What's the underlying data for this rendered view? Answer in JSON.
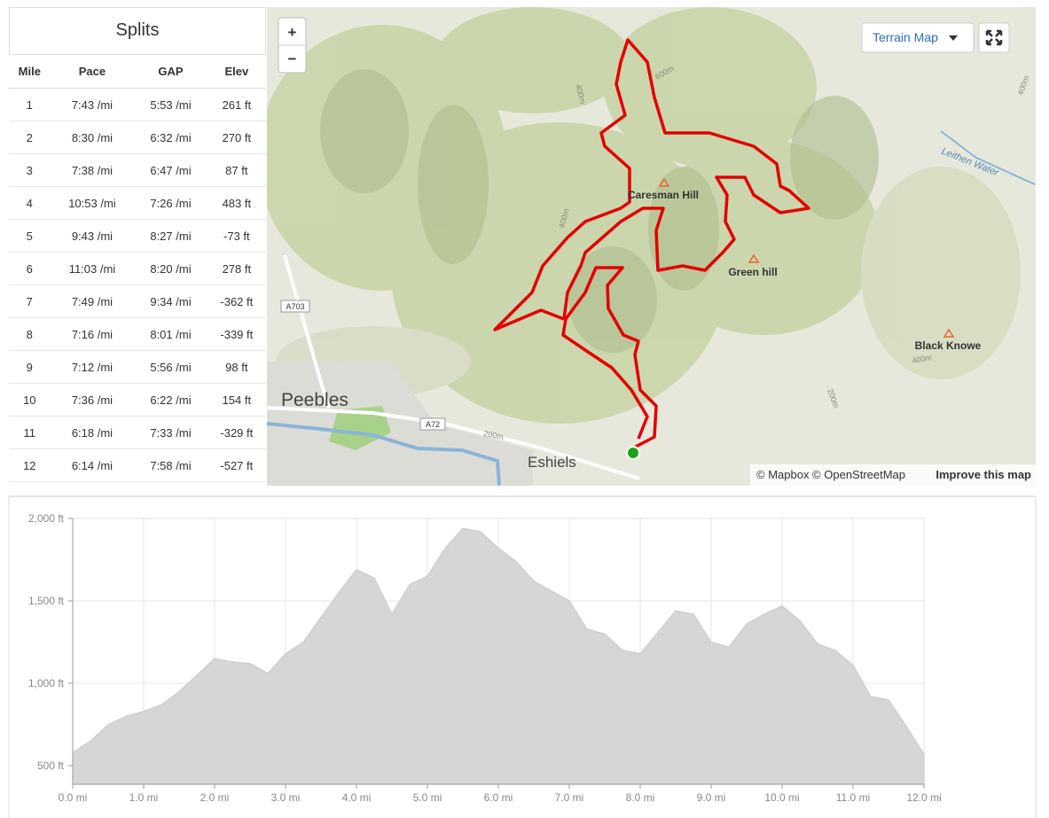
{
  "splits": {
    "title": "Splits",
    "columns": [
      "Mile",
      "Pace",
      "GAP",
      "Elev"
    ],
    "rows": [
      [
        1,
        "7:43 /mi",
        "5:53 /mi",
        "261 ft"
      ],
      [
        2,
        "8:30 /mi",
        "6:32 /mi",
        "270 ft"
      ],
      [
        3,
        "7:38 /mi",
        "6:47 /mi",
        "87 ft"
      ],
      [
        4,
        "10:53 /mi",
        "7:26 /mi",
        "483 ft"
      ],
      [
        5,
        "9:43 /mi",
        "8:27 /mi",
        "-73 ft"
      ],
      [
        6,
        "11:03 /mi",
        "8:20 /mi",
        "278 ft"
      ],
      [
        7,
        "7:49 /mi",
        "9:34 /mi",
        "-362 ft"
      ],
      [
        8,
        "7:16 /mi",
        "8:01 /mi",
        "-339 ft"
      ],
      [
        9,
        "7:12 /mi",
        "5:56 /mi",
        "98 ft"
      ],
      [
        10,
        "7:36 /mi",
        "6:22 /mi",
        "154 ft"
      ],
      [
        11,
        "6:18 /mi",
        "7:33 /mi",
        "-329 ft"
      ],
      [
        12,
        "6:14 /mi",
        "7:58 /mi",
        "-527 ft"
      ]
    ]
  },
  "map": {
    "zoom_in": "+",
    "zoom_out": "−",
    "style_button": "Terrain Map",
    "labels": [
      "Caresman Hill",
      "Green hill",
      "Black Knowe",
      "Peebles",
      "Eshiels",
      "A703",
      "A72",
      "Leithen Water"
    ],
    "contours": [
      "400m",
      "600m",
      "400m",
      "400m",
      "200m",
      "200m",
      "400m"
    ],
    "attribution": "© Mapbox © OpenStreetMap",
    "improve_link": "Improve this map"
  },
  "chart_data": {
    "type": "area",
    "color": "#d6d6d6",
    "grid": true,
    "x": [
      0,
      0.25,
      0.5,
      0.75,
      1,
      1.25,
      1.5,
      1.75,
      2,
      2.25,
      2.5,
      2.75,
      3,
      3.25,
      3.5,
      3.75,
      4,
      4.25,
      4.5,
      4.75,
      5,
      5.25,
      5.5,
      5.75,
      6,
      6.25,
      6.5,
      6.75,
      7,
      7.25,
      7.5,
      7.75,
      8,
      8.25,
      8.5,
      8.75,
      9,
      9.25,
      9.5,
      9.75,
      10,
      10.25,
      10.5,
      10.75,
      11,
      11.25,
      11.5,
      11.75,
      12
    ],
    "values": [
      580,
      650,
      750,
      800,
      830,
      870,
      950,
      1050,
      1150,
      1130,
      1120,
      1060,
      1180,
      1250,
      1400,
      1550,
      1690,
      1640,
      1420,
      1600,
      1650,
      1820,
      1940,
      1920,
      1820,
      1740,
      1620,
      1560,
      1500,
      1330,
      1300,
      1200,
      1180,
      1310,
      1440,
      1420,
      1250,
      1220,
      1360,
      1420,
      1470,
      1380,
      1240,
      1200,
      1110,
      920,
      900,
      740,
      570
    ],
    "xlim": [
      0,
      12
    ],
    "ylim": [
      387,
      2000
    ],
    "xticks": [
      {
        "value": 0,
        "label": "0.0 mi"
      },
      {
        "value": 1,
        "label": "1.0 mi"
      },
      {
        "value": 2,
        "label": "2.0 mi"
      },
      {
        "value": 3,
        "label": "3.0 mi"
      },
      {
        "value": 4,
        "label": "4.0 mi"
      },
      {
        "value": 5,
        "label": "5.0 mi"
      },
      {
        "value": 6,
        "label": "6.0 mi"
      },
      {
        "value": 7,
        "label": "7.0 mi"
      },
      {
        "value": 8,
        "label": "8.0 mi"
      },
      {
        "value": 9,
        "label": "9.0 mi"
      },
      {
        "value": 10,
        "label": "10.0 mi"
      },
      {
        "value": 11,
        "label": "11.0 mi"
      },
      {
        "value": 12,
        "label": "12.0 mi"
      }
    ],
    "yticks": [
      {
        "value": 500,
        "label": "500 ft"
      },
      {
        "value": 1000,
        "label": "1,000 ft"
      },
      {
        "value": 1500,
        "label": "1,500 ft"
      },
      {
        "value": 2000,
        "label": "2,000 ft"
      }
    ]
  }
}
